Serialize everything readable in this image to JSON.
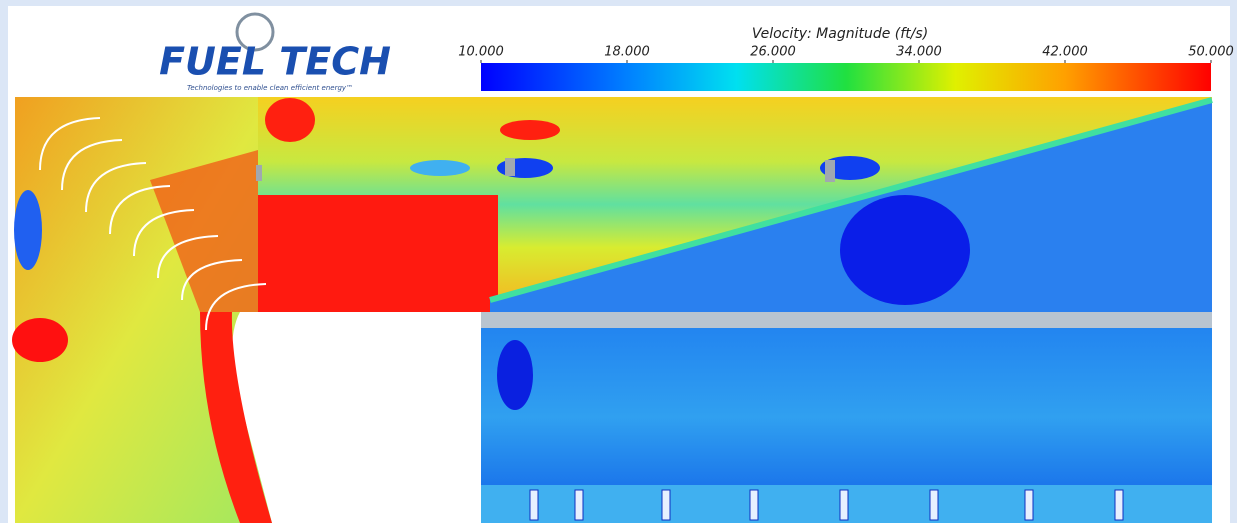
{
  "logo": {
    "name": "FUEL TECH",
    "tagline": "Technologies to enable clean efficient energy™"
  },
  "legend": {
    "title": "Velocity: Magnitude (ft/s)",
    "range": [
      10,
      50
    ],
    "ticks": [
      {
        "value": 10,
        "label": "10.000"
      },
      {
        "value": 18,
        "label": "18.000"
      },
      {
        "value": 26,
        "label": "26.000"
      },
      {
        "value": 34,
        "label": "34.000"
      },
      {
        "value": 42,
        "label": "42.000"
      },
      {
        "value": 50,
        "label": "50.000"
      }
    ]
  }
}
